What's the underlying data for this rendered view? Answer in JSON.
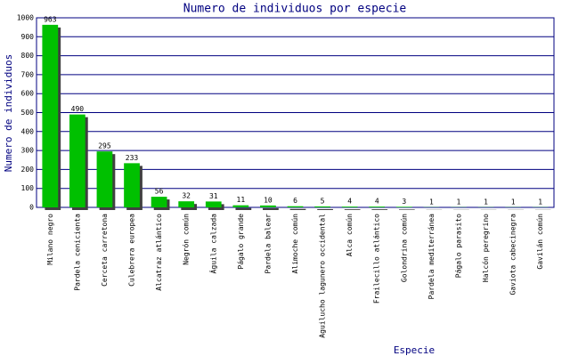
{
  "chart_data": {
    "type": "bar",
    "title": "Numero de individuos por especie",
    "y_label": "Numero de individuos",
    "x_label": "Especie",
    "categories": [
      "Milano negro",
      "Pardela cenicienta",
      "Cerceta carretona",
      "Culebrera europea",
      "Alcatraz atlántico",
      "Negrón común",
      "Águila calzada",
      "Págalo grande",
      "Pardela balear",
      "Alimoche común",
      "Aguilucho lagunero occidental",
      "Alca común",
      "Frailecillo atlántico",
      "Golondrina común",
      "Pardela mediterránea",
      "Págalo parasito",
      "Halcón peregrino",
      "Gaviota cabecinegra",
      "Gavilán común"
    ],
    "values": [
      963,
      490,
      295,
      233,
      56,
      32,
      31,
      11,
      10,
      6,
      5,
      4,
      4,
      3,
      1,
      1,
      1,
      1,
      1
    ],
    "color": "#00c000",
    "shadow_color": "#404040",
    "ylim": [
      0,
      1000
    ],
    "yticks": [
      0,
      100,
      200,
      300,
      400,
      500,
      600,
      700,
      800,
      900,
      1000
    ],
    "grid": true
  }
}
